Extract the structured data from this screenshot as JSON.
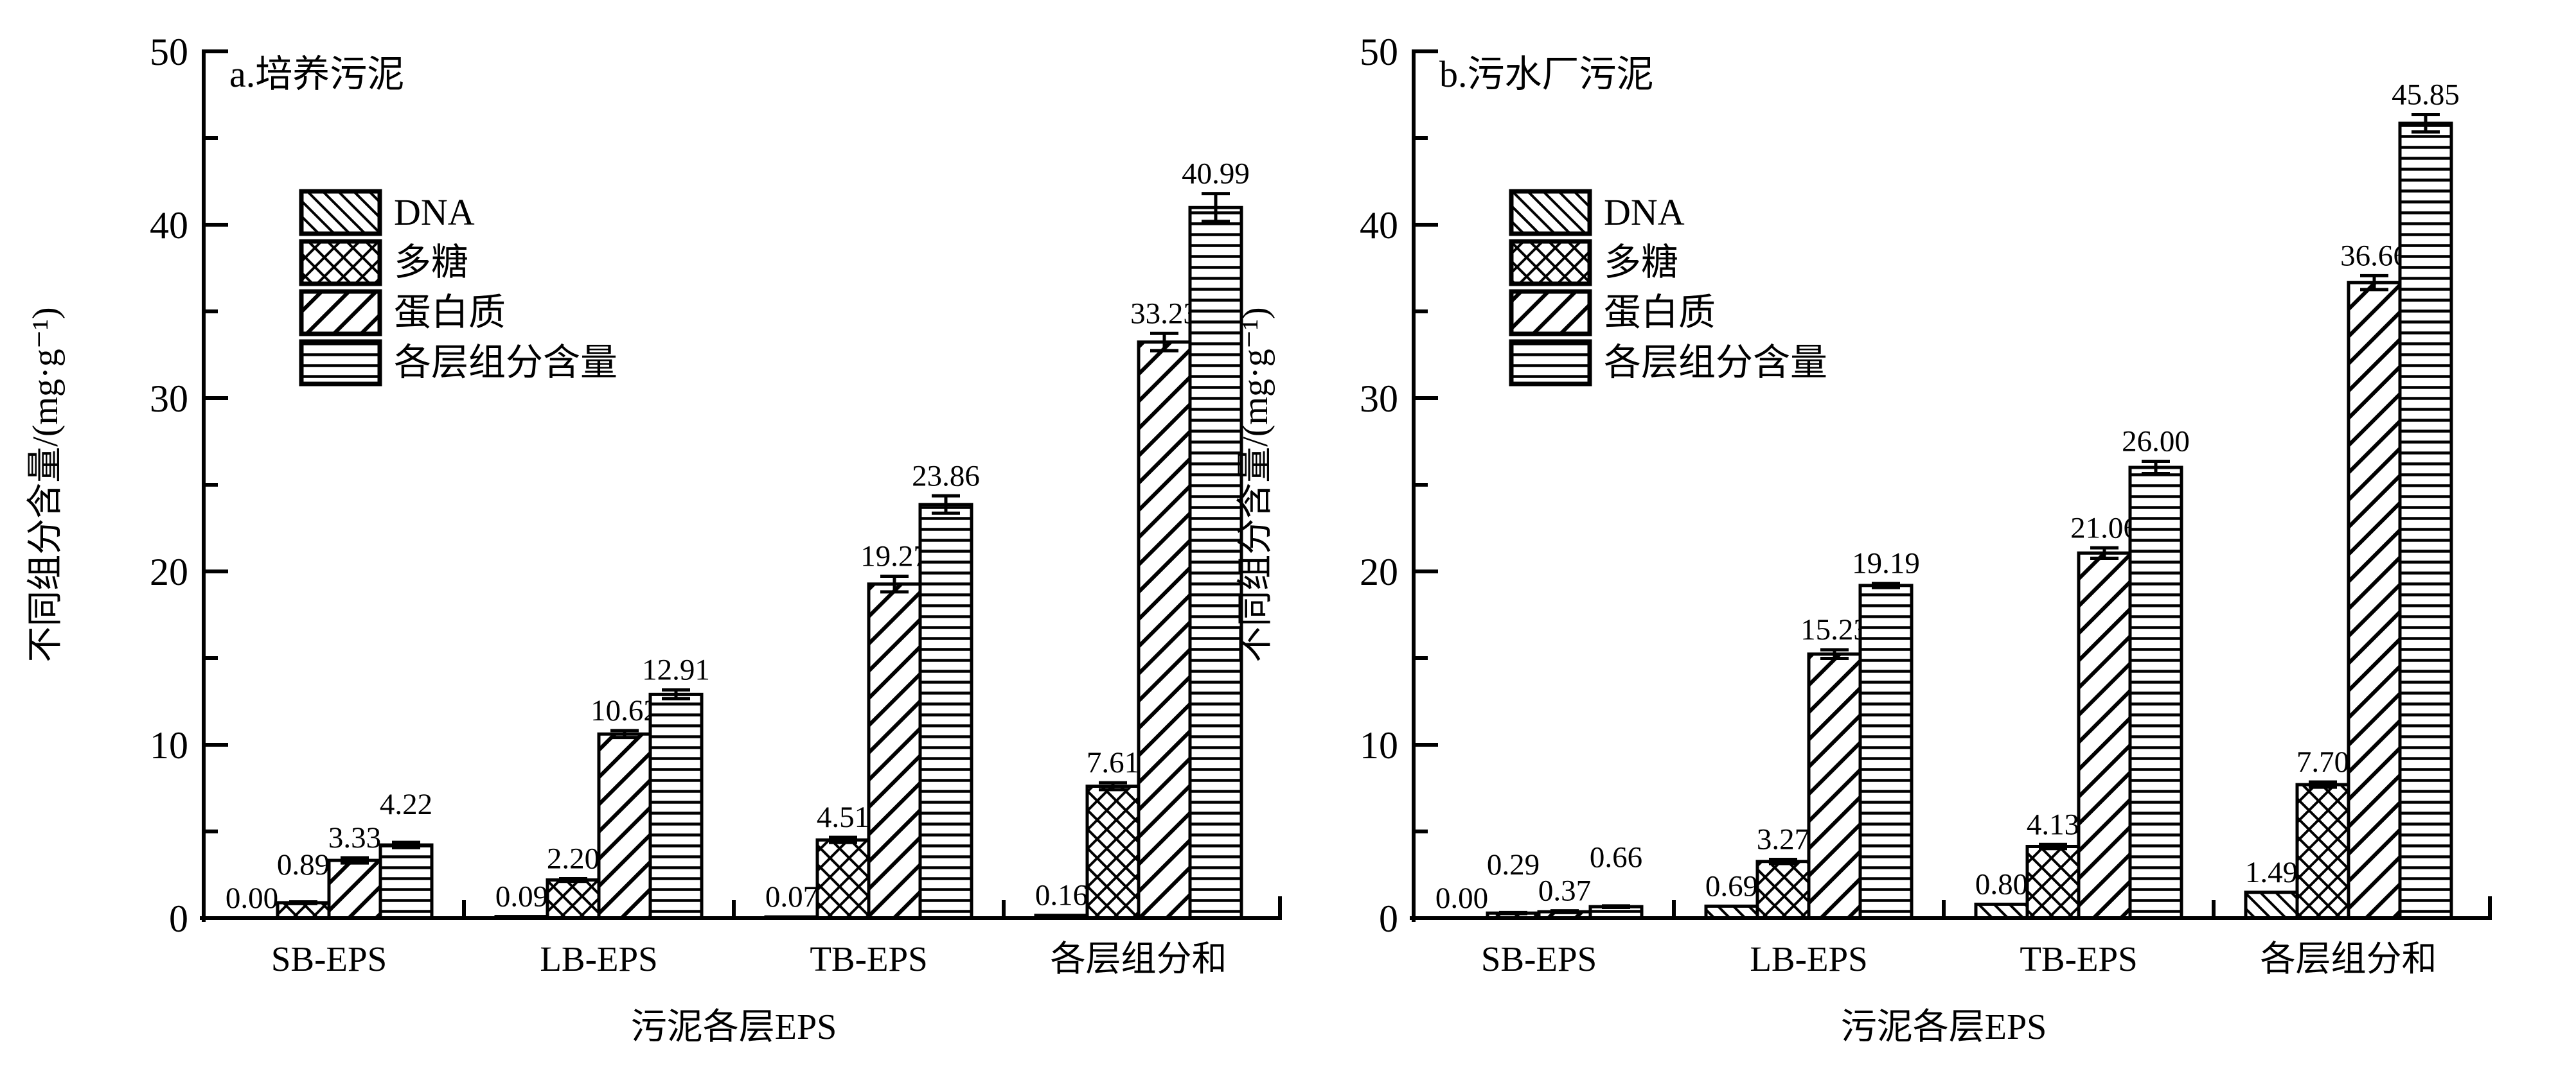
{
  "figure": {
    "background": "#ffffff",
    "ink": "#000000",
    "unit_note": "mg·g⁻¹"
  },
  "chart_data": [
    {
      "id": "a",
      "type": "bar",
      "title": "a.培养污泥",
      "xlabel": "污泥各层EPS",
      "ylabel": "不同组分含量/(mg·g⁻¹)",
      "ylim": [
        0,
        50
      ],
      "grid": false,
      "legend_position": "upper-left-inside",
      "ytick_major": [
        0,
        10,
        20,
        30,
        40,
        50
      ],
      "ytick_minor": [
        5,
        15,
        25,
        35,
        45
      ],
      "ytick_labels": [
        "0",
        "10",
        "20",
        "30",
        "40",
        "50"
      ],
      "categories": [
        "SB-EPS",
        "LB-EPS",
        "TB-EPS",
        "各层组分和"
      ],
      "series": [
        {
          "name": "DNA",
          "hatch": "backslash",
          "values": [
            0.0,
            0.09,
            0.07,
            0.16
          ],
          "value_labels": [
            "0.00",
            "0.09",
            "0.07",
            "0.16"
          ],
          "errors": [
            0,
            0,
            0,
            0
          ]
        },
        {
          "name": "多糖",
          "hatch": "crosshatch",
          "values": [
            0.89,
            2.2,
            4.51,
            7.61
          ],
          "value_labels": [
            "0.89",
            "2.20",
            "4.51",
            "7.61"
          ],
          "errors": [
            0.05,
            0.08,
            0.15,
            0.2
          ]
        },
        {
          "name": "蛋白质",
          "hatch": "slash",
          "values": [
            3.33,
            10.62,
            19.27,
            33.23
          ],
          "value_labels": [
            "3.33",
            "10.62",
            "19.27",
            "33.23"
          ],
          "errors": [
            0.15,
            0.2,
            0.45,
            0.5
          ]
        },
        {
          "name": "各层组分含量",
          "hatch": "hlines",
          "values": [
            4.22,
            12.91,
            23.86,
            40.99
          ],
          "value_labels": [
            "4.22",
            "12.91",
            "23.86",
            "40.99"
          ],
          "errors": [
            0.15,
            0.25,
            0.5,
            0.8
          ]
        }
      ]
    },
    {
      "id": "b",
      "type": "bar",
      "title": "b.污水厂污泥",
      "xlabel": "污泥各层EPS",
      "ylabel": "不同组分含量/(mg·g⁻¹)",
      "ylim": [
        0,
        50
      ],
      "grid": false,
      "legend_position": "upper-left-inside",
      "ytick_major": [
        0,
        10,
        20,
        30,
        40,
        50
      ],
      "ytick_minor": [
        5,
        15,
        25,
        35,
        45
      ],
      "ytick_labels": [
        "0",
        "10",
        "20",
        "30",
        "40",
        "50"
      ],
      "categories": [
        "SB-EPS",
        "LB-EPS",
        "TB-EPS",
        "各层组分和"
      ],
      "series": [
        {
          "name": "DNA",
          "hatch": "backslash",
          "values": [
            0.0,
            0.69,
            0.8,
            1.49
          ],
          "value_labels": [
            "0.00",
            "0.69",
            "0.80",
            "1.49"
          ],
          "errors": [
            0,
            0,
            0,
            0
          ]
        },
        {
          "name": "多糖",
          "hatch": "crosshatch",
          "values": [
            0.29,
            3.27,
            4.13,
            7.7
          ],
          "value_labels": [
            "0.29",
            "3.27",
            "4.13",
            "7.70"
          ],
          "errors": [
            0.03,
            0.12,
            0.12,
            0.15
          ]
        },
        {
          "name": "蛋白质",
          "hatch": "slash",
          "values": [
            0.37,
            15.23,
            21.06,
            36.66
          ],
          "value_labels": [
            "0.37",
            "15.23",
            "21.06",
            "36.66"
          ],
          "errors": [
            0.05,
            0.25,
            0.3,
            0.4
          ]
        },
        {
          "name": "各层组分含量",
          "hatch": "hlines",
          "values": [
            0.66,
            19.19,
            26.0,
            45.85
          ],
          "value_labels": [
            "0.66",
            "19.19",
            "26.00",
            "45.85"
          ],
          "errors": [
            0.05,
            0.12,
            0.35,
            0.5
          ]
        }
      ]
    }
  ]
}
